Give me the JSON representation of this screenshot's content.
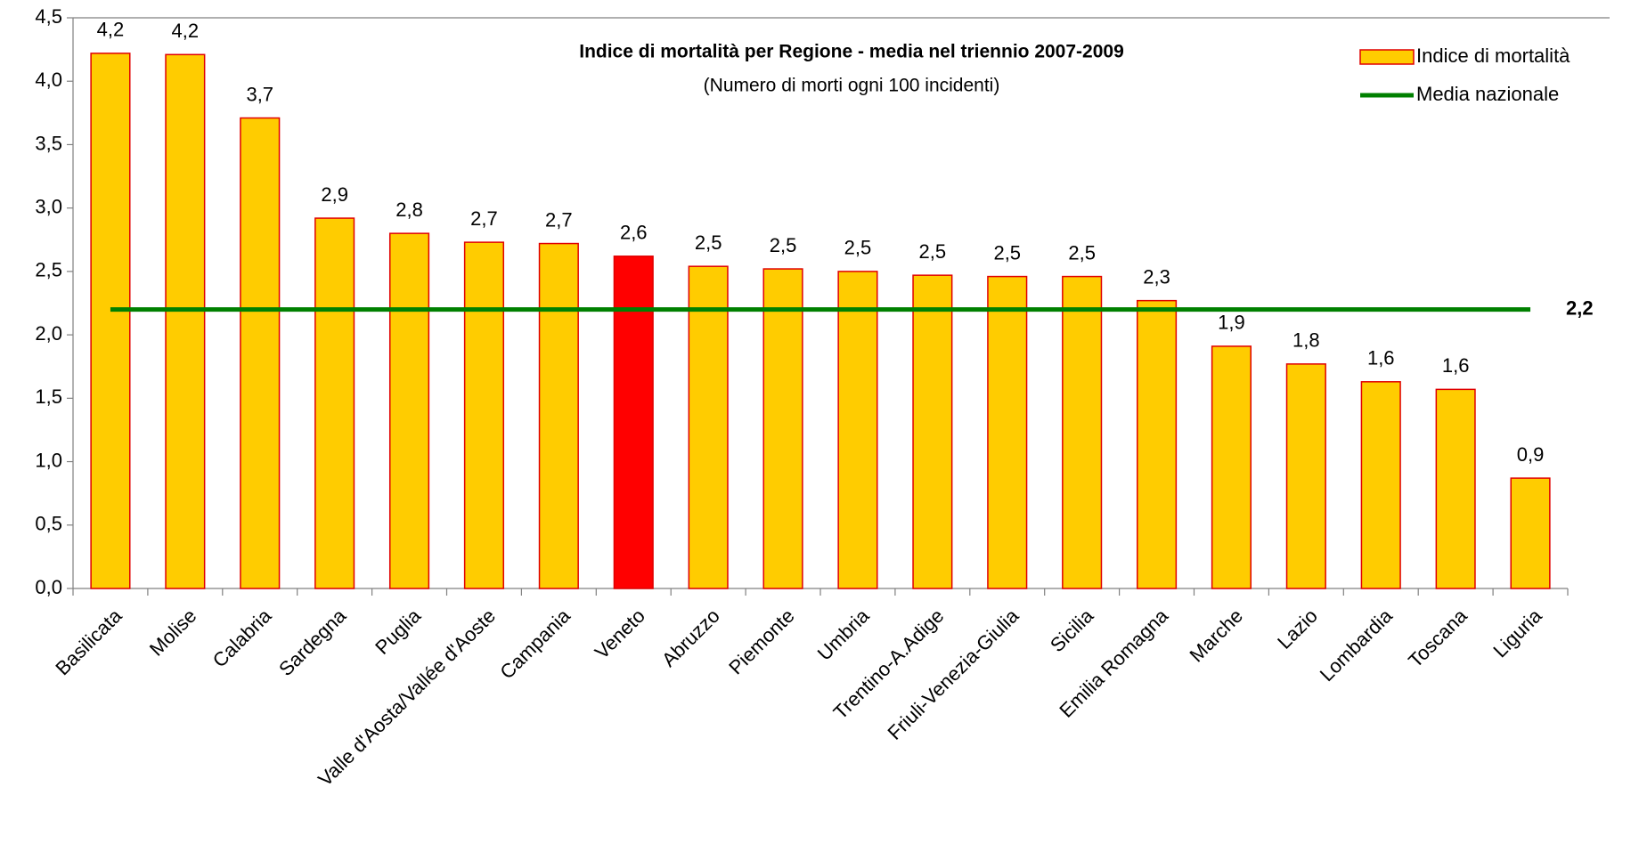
{
  "chart_data": {
    "type": "bar",
    "title": "Indice di mortalità per Regione - media nel triennio 2007-2009",
    "subtitle": "(Numero di morti ogni 100 incidenti)",
    "categories": [
      "Basilicata",
      "Molise",
      "Calabria",
      "Sardegna",
      "Puglia",
      "Valle d'Aosta/Vallée d'Aoste",
      "Campania",
      "Veneto",
      "Abruzzo",
      "Piemonte",
      "Umbria",
      "Trentino-A.Adige",
      "Friuli-Venezia-Giulia",
      "Sicilia",
      "Emilia Romagna",
      "Marche",
      "Lazio",
      "Lombardia",
      "Toscana",
      "Liguria"
    ],
    "series": [
      {
        "name": "Indice di mortalità",
        "color": "#ffcc00",
        "border_color": "#e00000",
        "colors": [
          "#ffcc00",
          "#ffcc00",
          "#ffcc00",
          "#ffcc00",
          "#ffcc00",
          "#ffcc00",
          "#ffcc00",
          "#ff0000",
          "#ffcc00",
          "#ffcc00",
          "#ffcc00",
          "#ffcc00",
          "#ffcc00",
          "#ffcc00",
          "#ffcc00",
          "#ffcc00",
          "#ffcc00",
          "#ffcc00",
          "#ffcc00",
          "#ffcc00"
        ],
        "values": [
          4.22,
          4.21,
          3.71,
          2.92,
          2.8,
          2.73,
          2.72,
          2.62,
          2.54,
          2.52,
          2.5,
          2.47,
          2.46,
          2.46,
          2.27,
          1.91,
          1.77,
          1.63,
          1.57,
          0.87
        ],
        "value_labels": [
          "4,2",
          "4,2",
          "3,7",
          "2,9",
          "2,8",
          "2,7",
          "2,7",
          "2,6",
          "2,5",
          "2,5",
          "2,5",
          "2,5",
          "2,5",
          "2,5",
          "2,3",
          "1,9",
          "1,8",
          "1,6",
          "1,6",
          "0,9"
        ]
      }
    ],
    "reference_line": {
      "name": "Media nazionale",
      "value": 2.2,
      "label": "2,2",
      "color": "#008000"
    },
    "ylim": [
      0,
      4.5
    ],
    "yticks": [
      {
        "value": 0,
        "label": "0,0"
      },
      {
        "value": 0.5,
        "label": "0,5"
      },
      {
        "value": 1,
        "label": "1,0"
      },
      {
        "value": 1.5,
        "label": "1,5"
      },
      {
        "value": 2,
        "label": "2,0"
      },
      {
        "value": 2.5,
        "label": "2,5"
      },
      {
        "value": 3,
        "label": "3,0"
      },
      {
        "value": 3.5,
        "label": "3,5"
      },
      {
        "value": 4,
        "label": "4,0"
      },
      {
        "value": 4.5,
        "label": "4,5"
      }
    ],
    "grid": false,
    "legend": "top-right"
  }
}
